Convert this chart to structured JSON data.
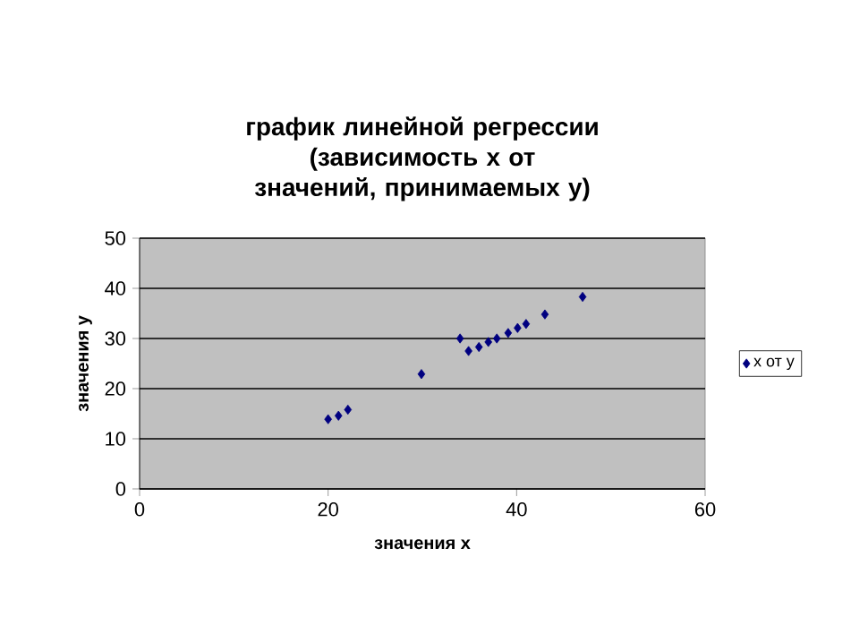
{
  "chart_data": {
    "type": "scatter",
    "title": "график линейной регрессии (зависимость x от значений, принимаемых y)",
    "xlabel": "значения x",
    "ylabel": "значения y",
    "xlim": [
      0,
      60
    ],
    "xticks": [
      0,
      20,
      40,
      60
    ],
    "ylim": [
      0,
      50
    ],
    "yticks": [
      0,
      10,
      20,
      30,
      40,
      50
    ],
    "grid": "y",
    "legend": "right",
    "marker": "diamond",
    "series": [
      {
        "name": "x от y",
        "color": "#000080",
        "x": [
          20,
          21.1,
          22.1,
          29.9,
          34,
          34.9,
          36,
          37,
          37.9,
          39.1,
          40.1,
          41,
          43,
          47
        ],
        "values": [
          13.9,
          14.6,
          15.8,
          22.9,
          30,
          27.5,
          28.3,
          29.3,
          30,
          31.1,
          32.1,
          32.9,
          34.8,
          38.3
        ]
      }
    ]
  }
}
